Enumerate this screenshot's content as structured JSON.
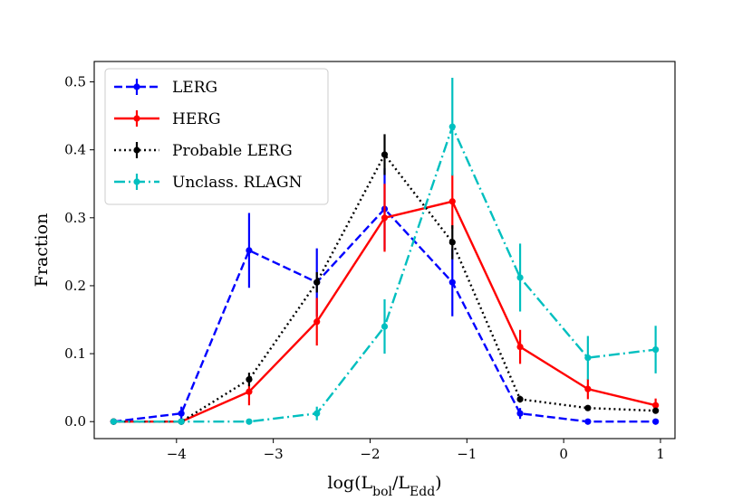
{
  "chart_data": {
    "type": "line",
    "xlabel": {
      "base": "log(L",
      "sub1": "bol",
      "mid": "/L",
      "sub2": "Edd",
      "end": ")"
    },
    "ylabel": "Fraction",
    "xlim": [
      -4.85,
      1.15
    ],
    "ylim": [
      -0.025,
      0.53
    ],
    "xticks": [
      -4,
      -3,
      -2,
      -1,
      0,
      1
    ],
    "xtick_labels": [
      "−4",
      "−3",
      "−2",
      "−1",
      "0",
      "1"
    ],
    "yticks": [
      0.0,
      0.1,
      0.2,
      0.3,
      0.4,
      0.5
    ],
    "ytick_labels": [
      "0.0",
      "0.1",
      "0.2",
      "0.3",
      "0.4",
      "0.5"
    ],
    "x": [
      -4.65,
      -3.95,
      -3.25,
      -2.55,
      -1.85,
      -1.15,
      -0.45,
      0.25,
      0.95
    ],
    "legend_position": "upper-left",
    "series": [
      {
        "name": "LERG",
        "color": "#0000ff",
        "dash": "dashed",
        "values": [
          0.0,
          0.012,
          0.252,
          0.205,
          0.313,
          0.205,
          0.012,
          0.0,
          0.0
        ],
        "errors": [
          0.0,
          0.01,
          0.055,
          0.05,
          0.06,
          0.05,
          0.008,
          0.0,
          0.0
        ]
      },
      {
        "name": "HERG",
        "color": "#ff0000",
        "dash": "solid",
        "values": [
          0.0,
          0.0,
          0.044,
          0.147,
          0.3,
          0.324,
          0.11,
          0.048,
          0.024
        ],
        "errors": [
          0.0,
          0.0,
          0.02,
          0.035,
          0.05,
          0.04,
          0.025,
          0.015,
          0.01
        ]
      },
      {
        "name": "Probable LERG",
        "color": "#000000",
        "dash": "dotted",
        "values": [
          0.0,
          0.0,
          0.062,
          0.205,
          0.393,
          0.264,
          0.033,
          0.02,
          0.016
        ],
        "errors": [
          0.0,
          0.0,
          0.01,
          0.015,
          0.03,
          0.025,
          0.005,
          0.004,
          0.004
        ]
      },
      {
        "name": "Unclass. RLAGN",
        "color": "#00bfbf",
        "dash": "dashdot",
        "values": [
          0.0,
          0.0,
          0.0,
          0.012,
          0.14,
          0.434,
          0.212,
          0.094,
          0.106
        ],
        "errors": [
          0.0,
          0.0,
          0.0,
          0.01,
          0.04,
          0.072,
          0.05,
          0.032,
          0.035
        ]
      }
    ]
  }
}
